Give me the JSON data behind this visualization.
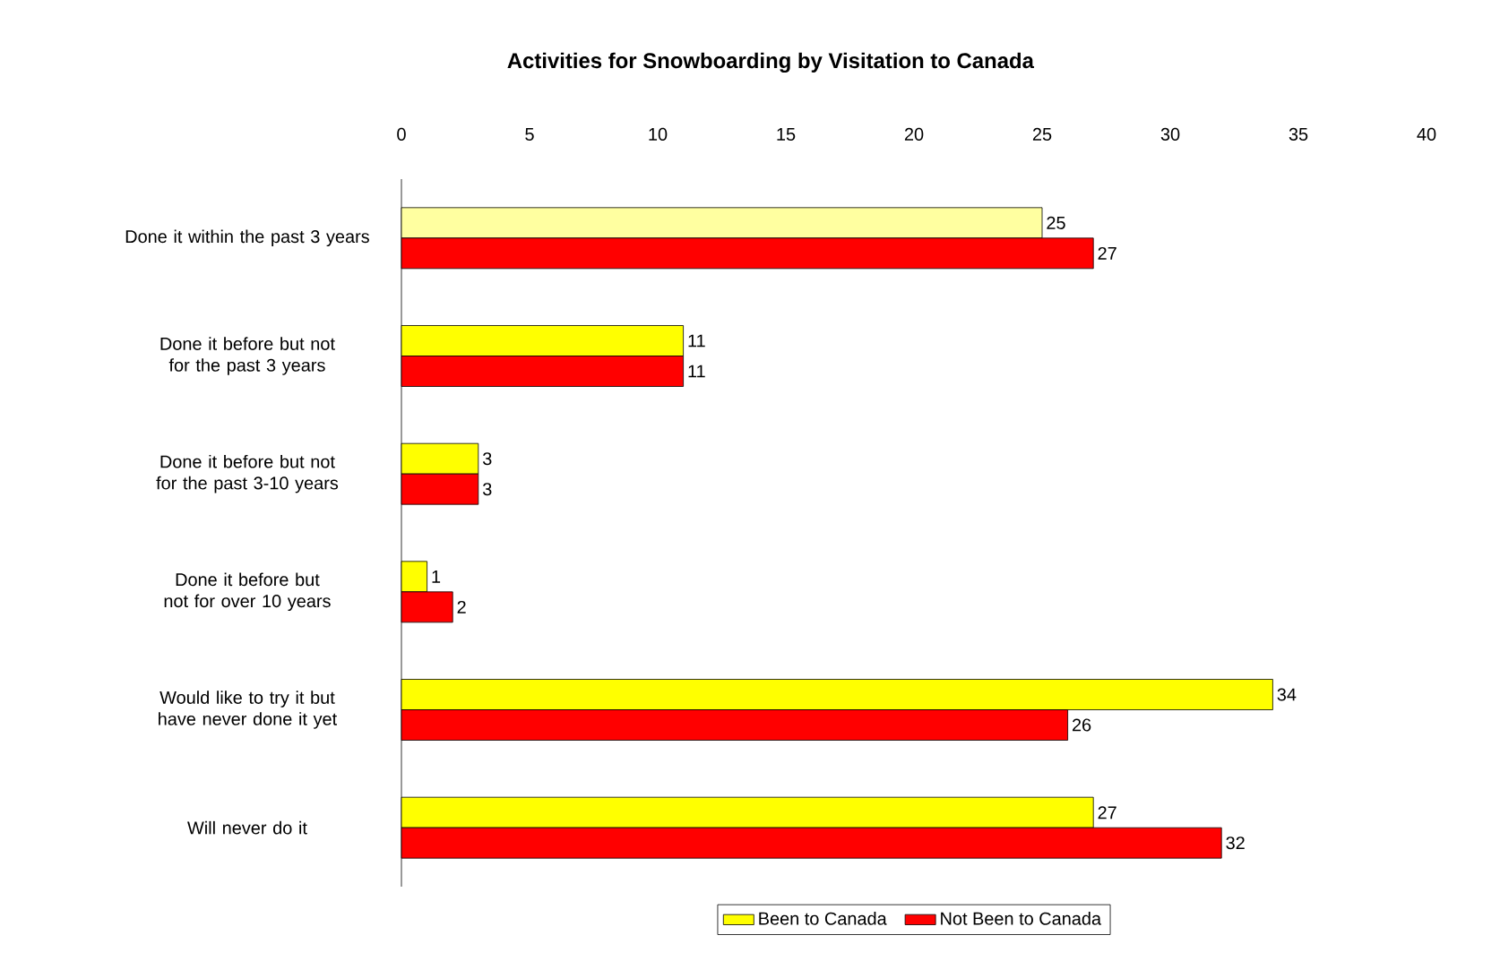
{
  "chart_data": {
    "type": "bar",
    "orientation": "horizontal",
    "title": "Activities for Snowboarding by Visitation to Canada",
    "categories": [
      "Done it within the past 3 years",
      "Done it before but not for the past 3 years",
      "Done it before but not for the past 3-10 years",
      "Done it before but not for over 10 years",
      "Would like to try it but have never done it yet",
      "Will never do it"
    ],
    "series": [
      {
        "name": "Been to Canada",
        "color": "#ffff00",
        "colors": [
          "#ffffa0",
          "#ffff00",
          "#ffff00",
          "#ffff00",
          "#ffff00",
          "#ffff00"
        ],
        "values": [
          25,
          11,
          3,
          1,
          34,
          27
        ]
      },
      {
        "name": "Not Been to Canada",
        "color": "#ff0000",
        "values": [
          27,
          11,
          3,
          2,
          26,
          32
        ]
      }
    ],
    "xlim": [
      0,
      40
    ],
    "xticks": [
      0,
      5,
      10,
      15,
      20,
      25,
      30,
      35,
      40
    ],
    "data_labels": true,
    "legend": "bottom",
    "grid": false
  }
}
